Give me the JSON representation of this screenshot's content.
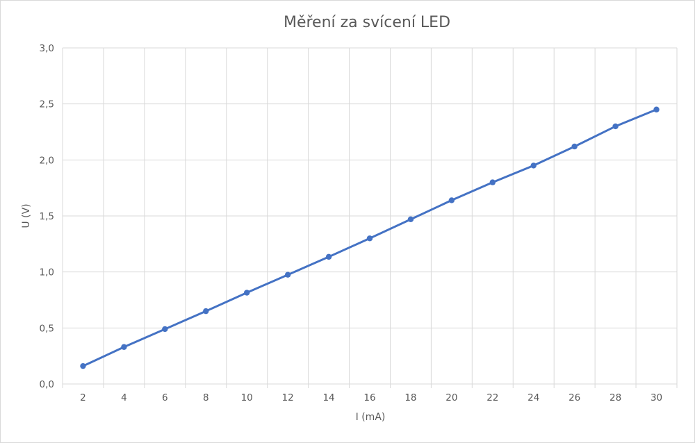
{
  "chart_data": {
    "type": "line",
    "title": "Měření za svícení LED",
    "xlabel": "I (mA)",
    "ylabel": "U (V)",
    "categories": [
      "2",
      "4",
      "6",
      "8",
      "10",
      "12",
      "14",
      "16",
      "18",
      "20",
      "22",
      "24",
      "26",
      "28",
      "30"
    ],
    "y_ticks": [
      "0,0",
      "0,5",
      "1,0",
      "1,5",
      "2,0",
      "2,5",
      "3,0"
    ],
    "ylim": [
      0,
      3
    ],
    "grid": true,
    "legend": "none",
    "series": [
      {
        "color": "#4472c4",
        "values": [
          0.16,
          0.33,
          0.49,
          0.65,
          0.815,
          0.975,
          1.135,
          1.3,
          1.47,
          1.64,
          1.8,
          1.95,
          2.12,
          2.3,
          2.45
        ]
      }
    ]
  }
}
